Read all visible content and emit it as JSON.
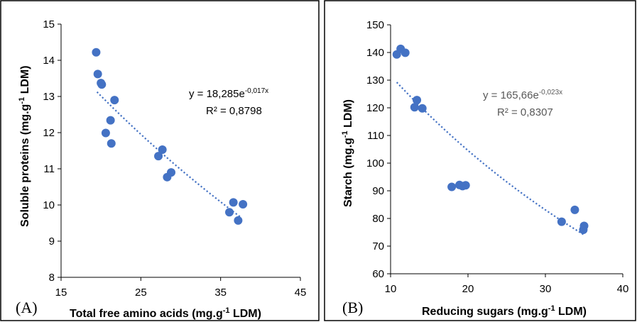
{
  "chart_data": [
    {
      "type": "scatter",
      "panel_label": "(A)",
      "xlabel_main": "Total free amino acids (mg.g",
      "xlabel_sup": "-1",
      "xlabel_tail": " LDM)",
      "ylabel_main": "Soluble proteins (mg.g",
      "ylabel_sup": "-1",
      "ylabel_tail": " LDM)",
      "xlim": [
        15,
        45
      ],
      "ylim": [
        8,
        15
      ],
      "x_ticks": [
        "15",
        "25",
        "35",
        "45"
      ],
      "y_ticks": [
        "8",
        "9",
        "10",
        "11",
        "12",
        "13",
        "14",
        "15"
      ],
      "equation_main": "y = 18,285e",
      "equation_sup": "-0,017x",
      "r2": "R² = 0,8798",
      "trend": {
        "a": 18.285,
        "b": -0.017,
        "x_from": 19.5,
        "x_to": 37.5
      },
      "points": [
        {
          "x": 19.4,
          "y": 14.22
        },
        {
          "x": 19.6,
          "y": 13.62
        },
        {
          "x": 20.0,
          "y": 13.37
        },
        {
          "x": 20.1,
          "y": 13.33
        },
        {
          "x": 21.7,
          "y": 12.9
        },
        {
          "x": 21.2,
          "y": 12.34
        },
        {
          "x": 20.6,
          "y": 11.99
        },
        {
          "x": 21.3,
          "y": 11.7
        },
        {
          "x": 27.7,
          "y": 11.53
        },
        {
          "x": 27.2,
          "y": 11.35
        },
        {
          "x": 28.8,
          "y": 10.9
        },
        {
          "x": 28.3,
          "y": 10.77
        },
        {
          "x": 36.6,
          "y": 10.07
        },
        {
          "x": 37.8,
          "y": 10.02
        },
        {
          "x": 36.1,
          "y": 9.8
        },
        {
          "x": 37.2,
          "y": 9.57
        }
      ]
    },
    {
      "type": "scatter",
      "panel_label": "(B)",
      "xlabel_main": "Reducing sugars (mg.g",
      "xlabel_sup": "-1",
      "xlabel_tail": " LDM)",
      "ylabel_main": "Starch (mg.g",
      "ylabel_sup": "-1",
      "ylabel_tail": " LDM)",
      "xlim": [
        10,
        40
      ],
      "ylim": [
        60,
        150
      ],
      "x_ticks": [
        "10",
        "20",
        "30",
        "40"
      ],
      "y_ticks": [
        "60",
        "70",
        "80",
        "90",
        "100",
        "110",
        "120",
        "130",
        "140",
        "150"
      ],
      "equation_main": "y = 165,66e",
      "equation_sup": "-0,023x",
      "r2": "R² = 0,8307",
      "trend": {
        "a": 165.66,
        "b": -0.023,
        "x_from": 10.8,
        "x_to": 35.0
      },
      "points": [
        {
          "x": 10.8,
          "y": 139.3
        },
        {
          "x": 11.3,
          "y": 141.3
        },
        {
          "x": 11.9,
          "y": 139.9
        },
        {
          "x": 13.4,
          "y": 122.8
        },
        {
          "x": 13.1,
          "y": 120.2
        },
        {
          "x": 14.1,
          "y": 119.8
        },
        {
          "x": 17.9,
          "y": 91.4
        },
        {
          "x": 18.9,
          "y": 92.1
        },
        {
          "x": 19.3,
          "y": 91.7
        },
        {
          "x": 19.7,
          "y": 92.0
        },
        {
          "x": 33.8,
          "y": 83.1
        },
        {
          "x": 32.1,
          "y": 78.8
        },
        {
          "x": 35.0,
          "y": 77.3
        },
        {
          "x": 34.9,
          "y": 75.9
        }
      ]
    }
  ]
}
